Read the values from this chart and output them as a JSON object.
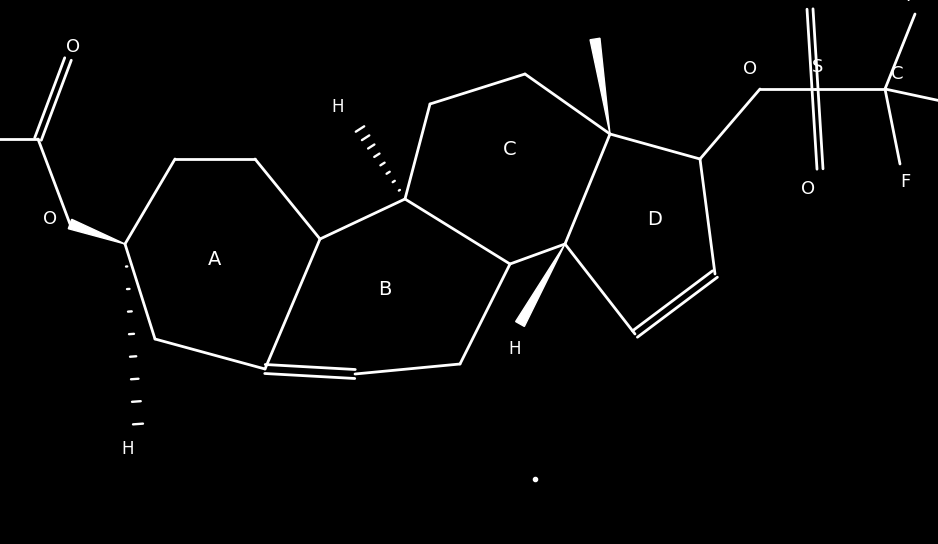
{
  "bg_color": "#000000",
  "line_color": "#ffffff",
  "text_color": "#ffffff",
  "lw": 2.0,
  "figsize": [
    9.38,
    5.44
  ],
  "dpi": 100,
  "xlim": [
    0,
    9.38
  ],
  "ylim": [
    0,
    5.44
  ]
}
